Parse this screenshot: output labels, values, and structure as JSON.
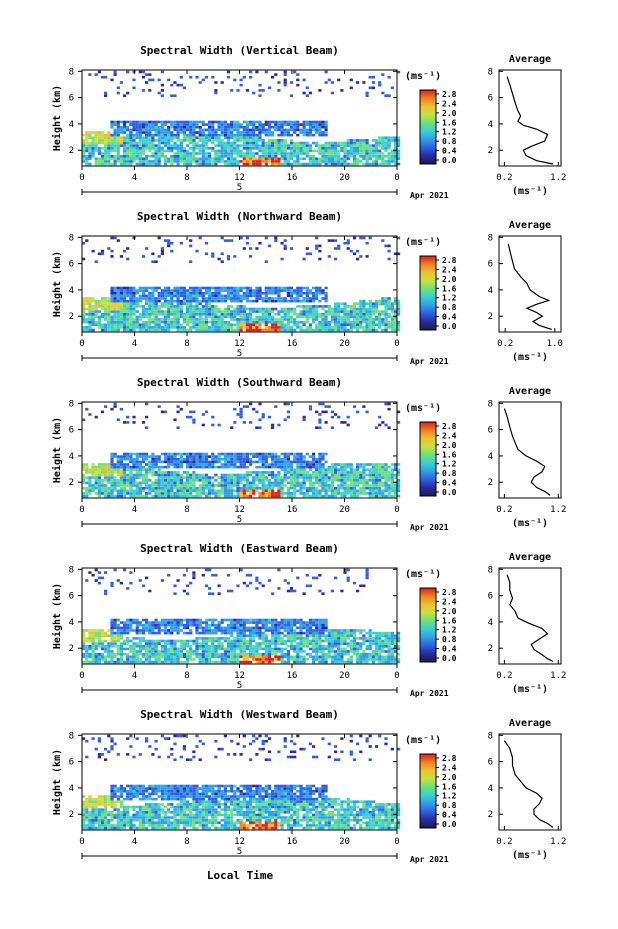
{
  "figure": {
    "date_label": "Apr 2021",
    "xlabel": "Local Time",
    "ylabel": "Height (km)",
    "unit_label": "(ms⁻¹)",
    "avg_title": "Average",
    "day_label": "5"
  },
  "colorbar": {
    "ticks": [
      "0.0",
      "0.4",
      "0.8",
      "1.2",
      "1.6",
      "2.0",
      "2.4",
      "2.8"
    ],
    "colors": [
      "#1a1a4a",
      "#2a2aa0",
      "#2f5fe0",
      "#2f9fe8",
      "#38d0d0",
      "#6fe07a",
      "#c8e040",
      "#f0c030",
      "#f08020",
      "#d82020"
    ]
  },
  "chart_data": [
    {
      "type": "heatmap",
      "title": "Spectral Width (Vertical Beam)",
      "xticks": [
        "0",
        "4",
        "8",
        "12",
        "16",
        "20",
        "0"
      ],
      "yticks": [
        "2",
        "4",
        "6",
        "8"
      ],
      "xlim": [
        0,
        24
      ],
      "ylim": [
        0.8,
        8.1
      ],
      "profile": {
        "xticks": [
          "0.2",
          "1.2"
        ],
        "xlim": [
          0.1,
          1.25
        ],
        "yticks": [
          "2",
          "4",
          "6",
          "8"
        ],
        "points": [
          [
            0.25,
            7.6
          ],
          [
            0.3,
            7.0
          ],
          [
            0.35,
            6.3
          ],
          [
            0.4,
            5.6
          ],
          [
            0.45,
            5.0
          ],
          [
            0.5,
            4.6
          ],
          [
            0.45,
            4.2
          ],
          [
            0.55,
            3.9
          ],
          [
            0.8,
            3.6
          ],
          [
            1.0,
            3.2
          ],
          [
            0.95,
            2.7
          ],
          [
            0.7,
            2.3
          ],
          [
            0.55,
            2.0
          ],
          [
            0.6,
            1.6
          ],
          [
            0.8,
            1.2
          ],
          [
            1.1,
            0.95
          ]
        ]
      }
    },
    {
      "type": "heatmap",
      "title": "Spectral Width (Northward Beam)",
      "xticks": [
        "0",
        "4",
        "8",
        "12",
        "16",
        "20",
        "0"
      ],
      "yticks": [
        "2",
        "4",
        "6",
        "8"
      ],
      "xlim": [
        0,
        24
      ],
      "ylim": [
        0.8,
        8.1
      ],
      "profile": {
        "xticks": [
          "0.2",
          "1.0"
        ],
        "xlim": [
          0.1,
          1.1
        ],
        "yticks": [
          "2",
          "4",
          "6",
          "8"
        ],
        "points": [
          [
            0.25,
            7.5
          ],
          [
            0.3,
            6.5
          ],
          [
            0.35,
            5.6
          ],
          [
            0.45,
            5.0
          ],
          [
            0.55,
            4.5
          ],
          [
            0.6,
            4.0
          ],
          [
            0.75,
            3.5
          ],
          [
            0.9,
            3.2
          ],
          [
            0.7,
            2.9
          ],
          [
            0.55,
            2.6
          ],
          [
            0.7,
            2.3
          ],
          [
            0.8,
            2.0
          ],
          [
            0.65,
            1.6
          ],
          [
            0.75,
            1.3
          ],
          [
            0.95,
            1.0
          ]
        ]
      }
    },
    {
      "type": "heatmap",
      "title": "Spectral Width (Southward Beam)",
      "xticks": [
        "0",
        "4",
        "8",
        "12",
        "16",
        "20",
        "0"
      ],
      "yticks": [
        "2",
        "4",
        "6",
        "8"
      ],
      "xlim": [
        0,
        24
      ],
      "ylim": [
        0.8,
        8.1
      ],
      "profile": {
        "xticks": [
          "0.2",
          "1.2"
        ],
        "xlim": [
          0.1,
          1.25
        ],
        "yticks": [
          "2",
          "4",
          "6",
          "8"
        ],
        "points": [
          [
            0.2,
            7.6
          ],
          [
            0.25,
            7.0
          ],
          [
            0.3,
            6.2
          ],
          [
            0.35,
            5.5
          ],
          [
            0.4,
            5.0
          ],
          [
            0.45,
            4.5
          ],
          [
            0.6,
            4.0
          ],
          [
            0.8,
            3.6
          ],
          [
            0.95,
            3.2
          ],
          [
            0.9,
            2.8
          ],
          [
            0.75,
            2.4
          ],
          [
            0.7,
            2.0
          ],
          [
            0.8,
            1.6
          ],
          [
            0.95,
            1.3
          ],
          [
            1.05,
            1.0
          ]
        ]
      }
    },
    {
      "type": "heatmap",
      "title": "Spectral Width (Eastward Beam)",
      "xticks": [
        "0",
        "4",
        "8",
        "12",
        "16",
        "20",
        "0"
      ],
      "yticks": [
        "2",
        "4",
        "6",
        "8"
      ],
      "xlim": [
        0,
        24
      ],
      "ylim": [
        0.8,
        8.1
      ],
      "profile": {
        "xticks": [
          "0.2",
          "1.2"
        ],
        "xlim": [
          0.1,
          1.25
        ],
        "yticks": [
          "2",
          "4",
          "6",
          "8"
        ],
        "points": [
          [
            0.25,
            7.6
          ],
          [
            0.3,
            7.0
          ],
          [
            0.3,
            6.4
          ],
          [
            0.35,
            5.8
          ],
          [
            0.3,
            5.3
          ],
          [
            0.4,
            4.8
          ],
          [
            0.45,
            4.3
          ],
          [
            0.65,
            3.9
          ],
          [
            0.9,
            3.5
          ],
          [
            1.0,
            3.1
          ],
          [
            0.85,
            2.7
          ],
          [
            0.7,
            2.3
          ],
          [
            0.75,
            1.9
          ],
          [
            0.9,
            1.5
          ],
          [
            1.0,
            1.2
          ],
          [
            1.1,
            1.0
          ]
        ]
      }
    },
    {
      "type": "heatmap",
      "title": "Spectral Width (Westward Beam)",
      "xticks": [
        "0",
        "4",
        "8",
        "12",
        "16",
        "20",
        "0"
      ],
      "yticks": [
        "2",
        "4",
        "6",
        "8"
      ],
      "xlim": [
        0,
        24
      ],
      "ylim": [
        0.8,
        8.1
      ],
      "profile": {
        "xticks": [
          "0.2",
          "1.2"
        ],
        "xlim": [
          0.1,
          1.25
        ],
        "yticks": [
          "2",
          "4",
          "6",
          "8"
        ],
        "points": [
          [
            0.2,
            7.6
          ],
          [
            0.3,
            7.0
          ],
          [
            0.35,
            6.3
          ],
          [
            0.35,
            5.7
          ],
          [
            0.4,
            5.0
          ],
          [
            0.5,
            4.5
          ],
          [
            0.6,
            4.0
          ],
          [
            0.8,
            3.6
          ],
          [
            0.9,
            3.2
          ],
          [
            0.85,
            2.8
          ],
          [
            0.75,
            2.4
          ],
          [
            0.75,
            2.0
          ],
          [
            0.85,
            1.6
          ],
          [
            1.0,
            1.3
          ],
          [
            1.1,
            1.0
          ]
        ]
      }
    }
  ]
}
